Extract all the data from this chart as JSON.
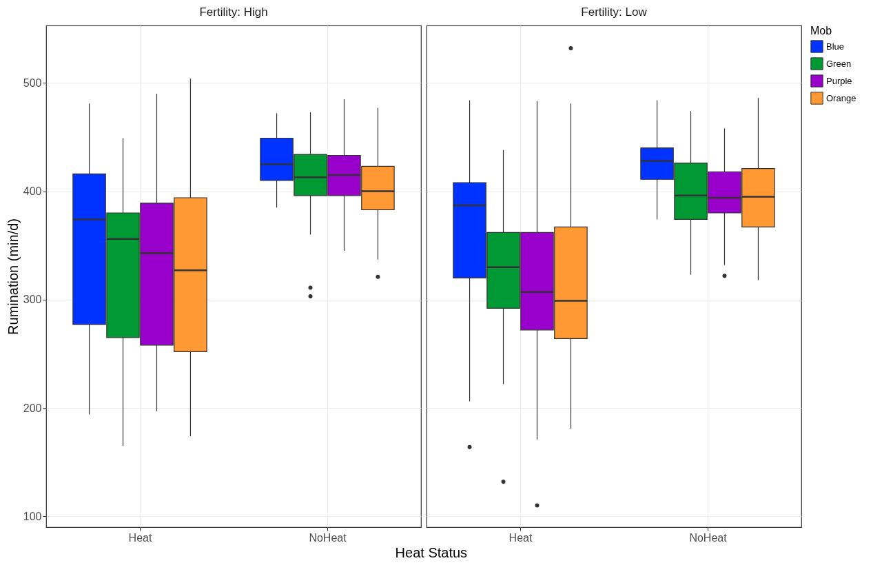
{
  "chart_data": [
    {
      "type": "box",
      "title": "Fertility: High",
      "xlabel": "Heat Status",
      "ylabel": "Rumination (min/d)",
      "categories": [
        "Heat",
        "NoHeat"
      ],
      "ylim": [
        90,
        553
      ],
      "yticks": [
        100,
        200,
        300,
        400,
        500
      ],
      "grid": true,
      "legend": "right",
      "legend_title": "Mob",
      "series": [
        {
          "name": "Blue",
          "color": "#0033ff",
          "boxes": [
            {
              "low": 194,
              "q1": 277,
              "median": 374,
              "q3": 416,
              "high": 481
            },
            {
              "low": 385,
              "q1": 410,
              "median": 425,
              "q3": 449,
              "high": 472
            }
          ]
        },
        {
          "name": "Green",
          "color": "#009933",
          "boxes": [
            {
              "low": 165,
              "q1": 265,
              "median": 356,
              "q3": 380,
              "high": 449
            },
            {
              "low": 360,
              "q1": 396,
              "median": 413,
              "q3": 434,
              "high": 473,
              "outliers": [
                311,
                303
              ]
            }
          ]
        },
        {
          "name": "Purple",
          "color": "#9900cc",
          "boxes": [
            {
              "low": 197,
              "q1": 258,
              "median": 343,
              "q3": 389,
              "high": 490
            },
            {
              "low": 345,
              "q1": 396,
              "median": 415,
              "q3": 433,
              "high": 485
            }
          ]
        },
        {
          "name": "Orange",
          "color": "#ff9933",
          "boxes": [
            {
              "low": 174,
              "q1": 252,
              "median": 327,
              "q3": 394,
              "high": 504
            },
            {
              "low": 337,
              "q1": 383,
              "median": 400,
              "q3": 423,
              "high": 477,
              "outliers": [
                321
              ]
            }
          ]
        }
      ]
    },
    {
      "type": "box",
      "title": "Fertility: Low",
      "categories": [
        "Heat",
        "NoHeat"
      ],
      "ylim": [
        90,
        553
      ],
      "yticks": [
        100,
        200,
        300,
        400,
        500
      ],
      "grid": true,
      "tick_labels": "x",
      "series": [
        {
          "name": "Blue",
          "color": "#0033ff",
          "boxes": [
            {
              "low": 206,
              "q1": 320,
              "median": 387,
              "q3": 408,
              "high": 484,
              "outliers": [
                164
              ]
            },
            {
              "low": 374,
              "q1": 411,
              "median": 428,
              "q3": 440,
              "high": 484
            }
          ]
        },
        {
          "name": "Green",
          "color": "#009933",
          "boxes": [
            {
              "low": 222,
              "q1": 292,
              "median": 330,
              "q3": 362,
              "high": 438,
              "outliers": [
                132
              ]
            },
            {
              "low": 323,
              "q1": 374,
              "median": 396,
              "q3": 426,
              "high": 474
            }
          ]
        },
        {
          "name": "Purple",
          "color": "#9900cc",
          "boxes": [
            {
              "low": 171,
              "q1": 272,
              "median": 307,
              "q3": 362,
              "high": 483,
              "outliers": [
                110
              ]
            },
            {
              "low": 332,
              "q1": 380,
              "median": 394,
              "q3": 418,
              "high": 458,
              "outliers": [
                322
              ]
            }
          ]
        },
        {
          "name": "Orange",
          "color": "#ff9933",
          "boxes": [
            {
              "low": 181,
              "q1": 264,
              "median": 299,
              "q3": 367,
              "high": 481,
              "outliers": [
                532
              ]
            },
            {
              "low": 318,
              "q1": 367,
              "median": 395,
              "q3": 421,
              "high": 486
            }
          ]
        }
      ]
    }
  ]
}
